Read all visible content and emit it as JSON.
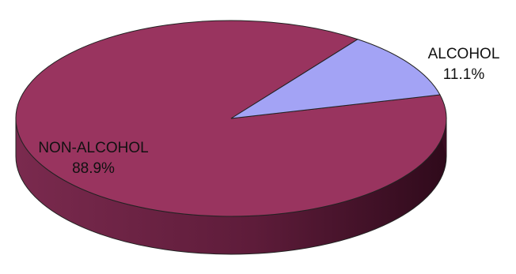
{
  "chart_data": {
    "type": "pie",
    "style": "3d",
    "title": "",
    "slices": [
      {
        "label": "NON-ALCOHOL",
        "value": 88.9,
        "value_label": "88.9%",
        "color": "#99345f",
        "side_color": "#5e1c3a"
      },
      {
        "label": "ALCOHOL",
        "value": 11.1,
        "value_label": "11.1%",
        "color": "#a3a3f5",
        "side_color": "#6c6cb8"
      }
    ],
    "legend": "none"
  }
}
